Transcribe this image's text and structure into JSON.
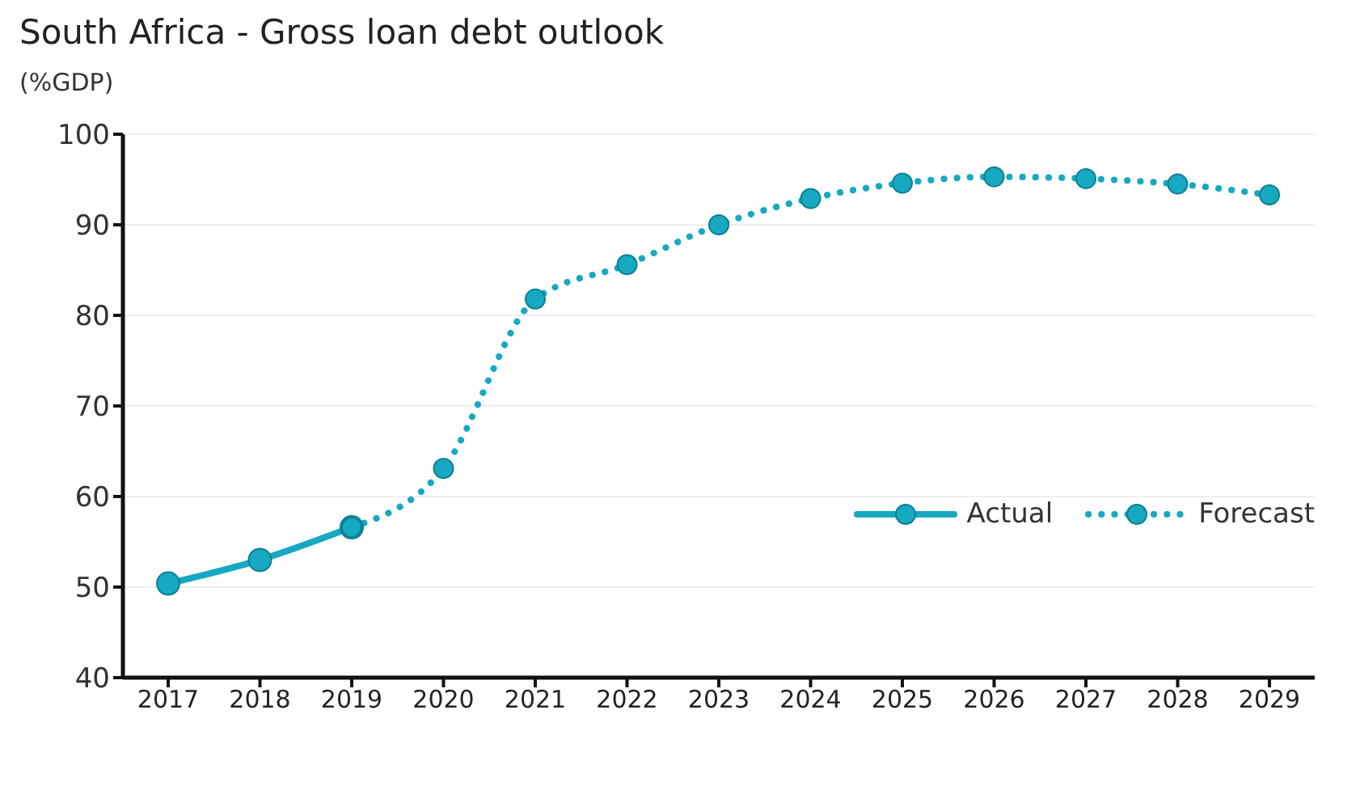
{
  "chart_data": {
    "type": "line",
    "title": "South Africa - Gross loan debt outlook",
    "ylabel": "(%GDP)",
    "categories": [
      "2017",
      "2018",
      "2019",
      "2020",
      "2021",
      "2022",
      "2023",
      "2024",
      "2025",
      "2026",
      "2027",
      "2028",
      "2029"
    ],
    "series": [
      {
        "name": "Actual",
        "color": "#17a9c1",
        "line_style": "solid",
        "values": [
          50.4,
          53.0,
          56.6,
          null,
          null,
          null,
          null,
          null,
          null,
          null,
          null,
          null,
          null
        ]
      },
      {
        "name": "Forecast",
        "color": "#17a9c1",
        "line_style": "dotted",
        "values": [
          null,
          null,
          56.6,
          63.1,
          81.8,
          85.6,
          90.0,
          92.9,
          94.6,
          95.3,
          95.1,
          94.5,
          93.3
        ]
      }
    ],
    "ylim": [
      40,
      100
    ],
    "yticks": [
      40,
      50,
      60,
      70,
      80,
      90,
      100
    ],
    "grid": "y",
    "legend": "right",
    "marker": "circle"
  }
}
